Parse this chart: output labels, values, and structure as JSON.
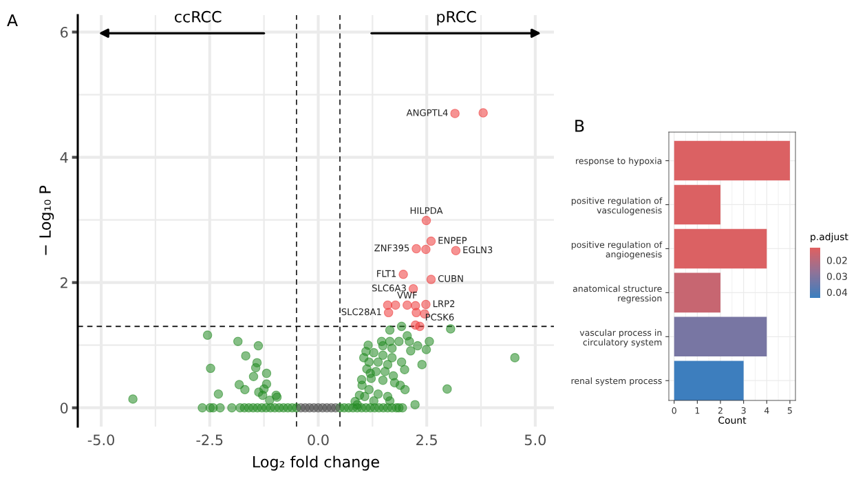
{
  "chart_data": [
    {
      "type": "scatter",
      "xlabel": "Log₂ fold change",
      "ylabel": "− Log₁₀ P",
      "xlim": [
        -5.54,
        5.43
      ],
      "ylim": [
        -0.3,
        6.27
      ],
      "xticks": [
        {
          "value": -5,
          "label": "-5.0"
        },
        {
          "value": -2.5,
          "label": "-2.5"
        },
        {
          "value": 0,
          "label": "0.0"
        },
        {
          "value": 2.5,
          "label": "2.5"
        },
        {
          "value": 5,
          "label": "5.0"
        }
      ],
      "yticks": [
        0,
        2,
        4,
        6
      ],
      "grid": true,
      "marker": "circle",
      "ref_lines": [
        {
          "axis": "x",
          "value": -0.5,
          "line_style": "dashed",
          "color": "#000000"
        },
        {
          "axis": "x",
          "value": 0.5,
          "line_style": "dashed",
          "color": "#000000"
        },
        {
          "axis": "y",
          "value": 1.3,
          "line_style": "dashed",
          "color": "#000000"
        }
      ],
      "series": [
        {
          "color": "#228b22",
          "x": [
            -4.27,
            -2.55,
            -2.48,
            -2.3,
            -1.85,
            -1.38,
            -1.67,
            -1.41,
            -1.44,
            -1.19,
            -1.49,
            -1.82,
            -1.69,
            -1.19,
            -1.37,
            -1.25,
            -1.28,
            -0.97,
            -0.95,
            -1.12,
            -2.67,
            -2.49,
            -2.42,
            -2.26,
            -1.99,
            -1.8,
            -1.7,
            -1.6,
            -1.5,
            -1.4,
            -1.3,
            -1.2,
            -1.1,
            -1.0,
            -0.9,
            -0.8,
            -0.7,
            -0.6,
            -0.5,
            0.5,
            0.6,
            0.7,
            0.8,
            0.9,
            1.0,
            1.1,
            1.2,
            1.3,
            1.4,
            1.5,
            1.6,
            1.7,
            1.8,
            1.86,
            1.94,
            3.05,
            1.65,
            1.92,
            1.46,
            1.65,
            1.86,
            2.1,
            2.05,
            2.56,
            1.49,
            1.7,
            2.29,
            2.13,
            2.49,
            1.28,
            1.49,
            1.7,
            1.17,
            1.38,
            1.6,
            1.92,
            1.99,
            2.39,
            4.53,
            1.12,
            1.33,
            1.54,
            1.22,
            1.49,
            1.73,
            1.76,
            1.89,
            2.0,
            2.97,
            1.01,
            1.17,
            1.38,
            1.6,
            1.07,
            1.28,
            1.65,
            2.23,
            0.85,
            0.95,
            1.0,
            1.05,
            1.1,
            1.15,
            1.2,
            0.9
          ],
          "values": [
            0.14,
            1.16,
            0.63,
            0.22,
            1.06,
            0.99,
            0.83,
            0.72,
            0.64,
            0.55,
            0.5,
            0.37,
            0.29,
            0.38,
            0.25,
            0.3,
            0.2,
            0.2,
            0.17,
            0.12,
            0,
            0,
            0,
            0,
            0,
            0,
            0,
            0,
            0,
            0,
            0,
            0,
            0,
            0,
            0,
            0,
            0,
            0,
            0,
            0,
            0,
            0,
            0,
            0,
            0,
            0,
            0,
            0,
            0,
            0,
            0,
            0,
            0,
            0,
            0,
            1.26,
            1.24,
            1.3,
            1.06,
            1.06,
            1.06,
            1.06,
            1.15,
            1.06,
            0.99,
            0.95,
            0.99,
            0.91,
            0.93,
            0.88,
            0.84,
            0.8,
            0.73,
            0.73,
            0.69,
            0.73,
            0.61,
            0.69,
            0.8,
            0.62,
            0.58,
            0.58,
            0.47,
            0.44,
            0.51,
            0.4,
            0.36,
            0.29,
            0.3,
            0.36,
            0.29,
            0.22,
            0.18,
            0.18,
            0.11,
            0.11,
            0.05,
            0.1,
            0.2,
            0.45,
            0.8,
            0.9,
            1.0,
            0.55,
            0.05
          ]
        },
        {
          "color": "#4d4d4d",
          "x": [
            -0.4,
            -0.3,
            -0.2,
            -0.1,
            0.0,
            0.1,
            0.2,
            0.3,
            0.4
          ],
          "values": [
            0,
            0,
            0,
            0,
            0,
            0,
            0,
            0,
            0
          ]
        },
        {
          "color": "#ee3b3b",
          "x": [
            3.8,
            3.15,
            2.49,
            2.6,
            2.26,
            2.48,
            3.17,
            1.96,
            2.6,
            2.19,
            1.6,
            1.78,
            2.05,
            2.24,
            2.48,
            1.62,
            2.26,
            2.45,
            2.24,
            2.34
          ],
          "values": [
            4.71,
            4.7,
            2.99,
            2.66,
            2.54,
            2.53,
            2.51,
            2.13,
            2.05,
            1.9,
            1.64,
            1.64,
            1.64,
            1.63,
            1.65,
            1.52,
            1.52,
            1.5,
            1.32,
            1.3
          ]
        }
      ],
      "annotations": [
        "A",
        "ccRCC",
        "pRCC",
        {
          "text": "ANGPTL4",
          "x": 3.15,
          "y": 4.7
        },
        {
          "text": "HILPDA",
          "x": 2.49,
          "y": 2.99
        },
        {
          "text": "ENPEP",
          "x": 2.6,
          "y": 2.66
        },
        {
          "text": "ZNF395",
          "x": 2.26,
          "y": 2.54
        },
        {
          "text": "EGLN3",
          "x": 3.17,
          "y": 2.51
        },
        {
          "text": "FLT1",
          "x": 1.96,
          "y": 2.13
        },
        {
          "text": "CUBN",
          "x": 2.6,
          "y": 2.05
        },
        {
          "text": "SLC6A3",
          "x": 2.19,
          "y": 1.9
        },
        {
          "text": "VWF",
          "x": 2.05,
          "y": 1.64
        },
        {
          "text": "LRP2",
          "x": 2.48,
          "y": 1.65
        },
        {
          "text": "SLC28A1",
          "x": 1.62,
          "y": 1.52
        },
        {
          "text": "PCSK6",
          "x": 2.24,
          "y": 1.32
        }
      ]
    },
    {
      "type": "bar",
      "orientation": "horizontal",
      "xlabel": "Count",
      "legend_title": "p.adjust",
      "categories": [
        "response to hypoxia",
        "positive regulation of\nvasculogenesis",
        "positive regulation of\nangiogenesis",
        "anatomical structure\nregression",
        "vascular process in\ncirculatory system",
        "renal system process"
      ],
      "values": [
        5,
        2,
        4,
        2,
        4,
        3
      ],
      "cvalues": [
        0.013,
        0.013,
        0.013,
        0.017,
        0.032,
        0.043
      ],
      "clim": [
        0.0436,
        0.0121
      ],
      "cticks": [
        0.02,
        0.03,
        0.04
      ],
      "xlim": [
        -0.23,
        5.24
      ],
      "xticks": [
        0,
        1,
        2,
        3,
        4,
        5
      ],
      "grid": true,
      "annotations": [
        "B"
      ]
    }
  ]
}
